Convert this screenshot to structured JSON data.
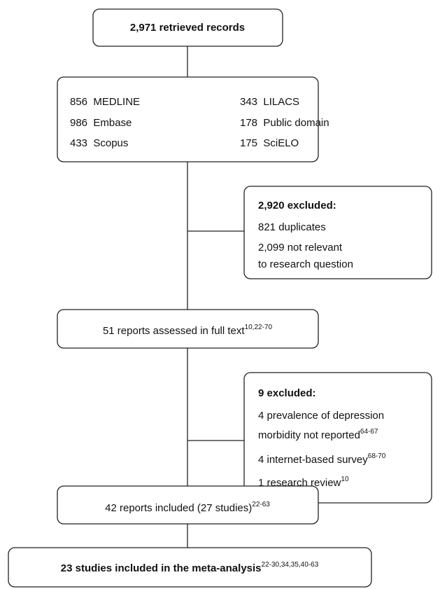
{
  "records": {
    "label": "2,971 retrieved records"
  },
  "sources": {
    "items": [
      "856  MEDLINE",
      "986  Embase",
      "433  Scopus",
      "343  LILACS",
      "178  Public domain",
      "175  SciELO"
    ]
  },
  "exclusion_1": {
    "title": "2,920 excluded:",
    "lines": [
      "821 duplicates",
      "2,099 not relevant",
      "to research question"
    ]
  },
  "full_text": {
    "label": "51 reports assessed in full text",
    "refs": "10,22-70"
  },
  "exclusion_2": {
    "title": "9 excluded:",
    "lines": [
      {
        "text": "4 prevalence of depression"
      },
      {
        "text": "morbidity not reported",
        "refs": "64-67"
      },
      {
        "text": "4 internet-based survey",
        "refs": "68-70"
      },
      {
        "text": "1 research review",
        "refs": "10"
      }
    ]
  },
  "included": {
    "label": "42 reports included (27 studies)",
    "refs": "22-63"
  },
  "meta_analysis": {
    "label": "23 studies included in the meta-analysis",
    "refs": "22-30,34,35,40-63"
  }
}
